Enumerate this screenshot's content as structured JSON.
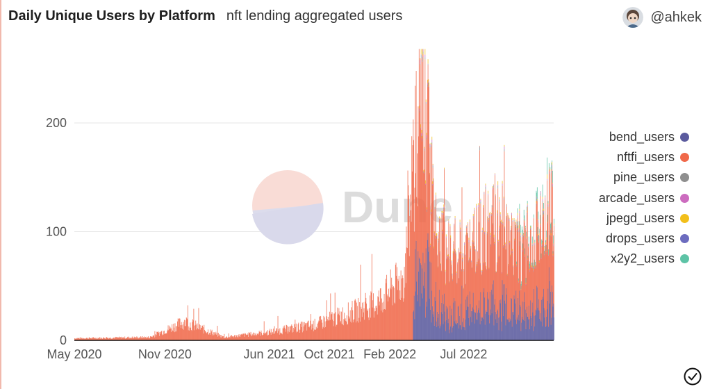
{
  "header": {
    "title": "Daily Unique Users by Platform",
    "subtitle": "nft lending aggregated users"
  },
  "author": {
    "handle": "@ahkek",
    "avatar": "avatar-icon"
  },
  "watermark": {
    "text": "Dune"
  },
  "actions": {
    "check": "check-circle-icon"
  },
  "chart_data": {
    "type": "bar",
    "stacked": true,
    "title": "Daily Unique Users by Platform",
    "subtitle": "nft lending aggregated users",
    "xlabel": "",
    "ylabel": "",
    "x_ticks": [
      "May 2020",
      "Nov 2020",
      "Jun 2021",
      "Oct 2021",
      "Feb 2022",
      "Jul 2022"
    ],
    "y_ticks": [
      0,
      100,
      200
    ],
    "ylim": [
      0,
      270
    ],
    "x_range": [
      "2020-05-01",
      "2022-12-31"
    ],
    "grid": true,
    "legend_position": "right",
    "series": [
      {
        "name": "bend_users",
        "color": "#5b5b9e"
      },
      {
        "name": "nftfi_users",
        "color": "#f0694a"
      },
      {
        "name": "pine_users",
        "color": "#8f8f8f"
      },
      {
        "name": "arcade_users",
        "color": "#cc6cbf"
      },
      {
        "name": "jpegd_users",
        "color": "#f2bf1b"
      },
      {
        "name": "drops_users",
        "color": "#6c6cbf"
      },
      {
        "name": "x2y2_users",
        "color": "#5dc3a6"
      }
    ],
    "approx_totals": [
      {
        "date": "2020-05-01",
        "total": 2
      },
      {
        "date": "2020-10-01",
        "total": 3
      },
      {
        "date": "2020-12-10",
        "total": 18
      },
      {
        "date": "2021-03-01",
        "total": 3
      },
      {
        "date": "2021-06-01",
        "total": 8
      },
      {
        "date": "2021-09-01",
        "total": 15
      },
      {
        "date": "2021-11-01",
        "total": 25
      },
      {
        "date": "2022-01-01",
        "total": 35
      },
      {
        "date": "2022-03-01",
        "total": 60
      },
      {
        "date": "2022-04-10",
        "total": 265
      },
      {
        "date": "2022-05-01",
        "total": 110
      },
      {
        "date": "2022-06-01",
        "total": 90
      },
      {
        "date": "2022-07-01",
        "total": 80
      },
      {
        "date": "2022-09-01",
        "total": 115
      },
      {
        "date": "2022-11-01",
        "total": 90
      },
      {
        "date": "2022-12-31",
        "total": 150
      }
    ]
  }
}
